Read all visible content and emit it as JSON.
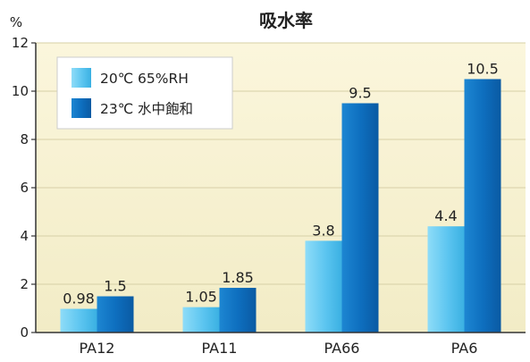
{
  "chart_data": {
    "type": "bar",
    "title": "吸水率",
    "ylabel": "%",
    "xlabel": "",
    "ylim": [
      0,
      12
    ],
    "yticks": [
      0,
      2,
      4,
      6,
      8,
      10,
      12
    ],
    "categories": [
      "PA12",
      "PA11",
      "PA66",
      "PA6"
    ],
    "series": [
      {
        "name": "20℃ 65%RH",
        "values": [
          0.98,
          1.05,
          3.8,
          4.4
        ],
        "labels": [
          "0.98",
          "1.05",
          "3.8",
          "4.4"
        ],
        "color": "#5fc6f0"
      },
      {
        "name": "23℃ 水中飽和",
        "values": [
          1.5,
          1.85,
          9.5,
          10.5
        ],
        "labels": [
          "1.5",
          "1.85",
          "9.5",
          "10.5"
        ],
        "color": "#1273c2"
      }
    ],
    "grid": true,
    "legend_position": "top-left",
    "background_color": "#f6f1d2"
  }
}
